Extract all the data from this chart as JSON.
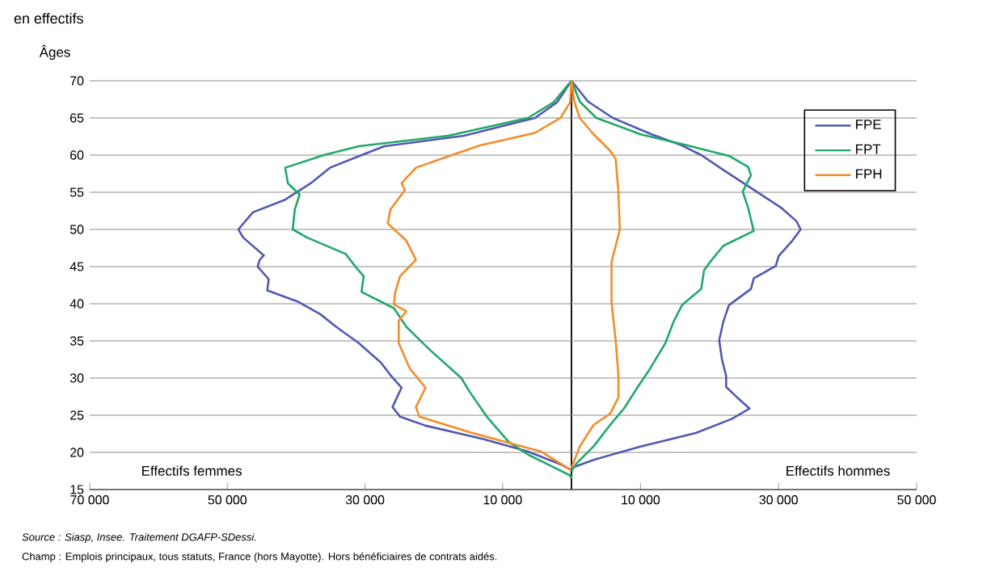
{
  "chart_data": [
    {
      "type": "line",
      "title": "en effectifs",
      "ylabel": "Âges",
      "annotations": [
        "Effectifs femmes",
        "Source : Siasp, Insee. Traitement DGAFP-SDessi.",
        "Champ : Emplois principaux, tous statuts, France (hors Mayotte). Hors bénéficiaires de contrats aidés."
      ],
      "xlim": [
        70000,
        0
      ],
      "xticks": [
        {
          "value": 70000,
          "label": "70 000"
        },
        {
          "value": 50000,
          "label": "50 000"
        },
        {
          "value": 30000,
          "label": "30 000"
        },
        {
          "value": 10000,
          "label": "10 000"
        }
      ],
      "ylim": [
        15,
        70
      ],
      "yticks": [
        15,
        20,
        25,
        30,
        35,
        40,
        45,
        50,
        55,
        60,
        65,
        70
      ],
      "grid": "y",
      "marker": "none",
      "line_style": "solid",
      "ref_lines": [
        {
          "axis": "x",
          "value": 0,
          "color": "#000000"
        }
      ],
      "series": [
        {
          "color": "#5158b0",
          "x": [
            0,
            2100,
            5300,
            15600,
            27200,
            30500,
            35100,
            37900,
            41600,
            46300,
            48400,
            47700,
            44700,
            45300,
            45600,
            44000,
            44200,
            39800,
            36500,
            34200,
            30900,
            27700,
            26300,
            24700,
            26000,
            24900,
            21200,
            12800,
            6300,
            1600,
            0
          ],
          "values": [
            70,
            67.1,
            65,
            62.6,
            61.2,
            60,
            58.3,
            56.2,
            54,
            52.3,
            50,
            48.9,
            46.5,
            45.9,
            45,
            43.3,
            41.8,
            40.3,
            38.6,
            36.9,
            34.7,
            32.1,
            30.4,
            28.7,
            26.1,
            24.8,
            23.6,
            21.8,
            20.1,
            18.4,
            17.6
          ]
        },
        {
          "color": "#1fa86a",
          "x": [
            0,
            2600,
            6300,
            17900,
            30900,
            36000,
            41600,
            41200,
            39500,
            40200,
            40500,
            38400,
            32800,
            31400,
            30200,
            30500,
            25800,
            24000,
            20700,
            16000,
            14900,
            12300,
            9100,
            6300,
            2600,
            200,
            0
          ],
          "values": [
            70,
            67.1,
            65,
            62.6,
            61.2,
            60,
            58.3,
            56.2,
            54.7,
            52.7,
            50,
            48.9,
            46.7,
            45,
            43.7,
            41.6,
            39.4,
            36.9,
            33.9,
            30,
            28.3,
            24.8,
            21.4,
            19.7,
            18,
            16.9,
            16.5
          ]
        },
        {
          "color": "#f28c28",
          "x": [
            0,
            200,
            1600,
            5300,
            13300,
            17400,
            22600,
            24700,
            24200,
            26300,
            26700,
            24000,
            22600,
            24900,
            25600,
            25800,
            24000,
            25100,
            25100,
            23500,
            21200,
            22600,
            22100,
            14700,
            4400,
            2100,
            0
          ],
          "values": [
            70,
            67.1,
            65,
            63,
            61.3,
            60,
            58.3,
            56.2,
            55.3,
            52.7,
            50.8,
            48.5,
            45.9,
            43.7,
            41.6,
            39.9,
            39,
            37.7,
            34.7,
            31.3,
            28.7,
            26.1,
            24.8,
            22.7,
            20.1,
            18.8,
            17.6
          ]
        }
      ]
    },
    {
      "type": "line",
      "annotations": [
        "Effectifs hommes"
      ],
      "xlim": [
        0,
        50000
      ],
      "xticks": [
        {
          "value": 10000,
          "label": "10 000"
        },
        {
          "value": 30000,
          "label": "30 000"
        },
        {
          "value": 50000,
          "label": "50 000"
        }
      ],
      "ylim": [
        15,
        70
      ],
      "tick_labels": "x",
      "grid": "y",
      "legend": "top right",
      "marker": "none",
      "line_style": "solid",
      "series": [
        {
          "name": "FPE",
          "color": "#5158b0",
          "x": [
            0,
            3200,
            10000,
            18000,
            23200,
            25800,
            24000,
            22400,
            22400,
            21800,
            21400,
            22000,
            22800,
            26000,
            26400,
            29600,
            30000,
            32000,
            33200,
            32600,
            30400,
            26800,
            22000,
            18800,
            16000,
            11600,
            6000,
            2400,
            0
          ],
          "values": [
            17.9,
            19,
            20.8,
            22.6,
            24.5,
            25.9,
            27.4,
            28.8,
            30.3,
            32.5,
            35.1,
            37.6,
            39.8,
            42,
            43.4,
            45.1,
            46.4,
            48.5,
            50,
            51.1,
            52.9,
            55.1,
            58,
            60,
            61.3,
            62.8,
            65,
            67.2,
            70
          ]
        },
        {
          "name": "FPT",
          "color": "#1fa86a",
          "x": [
            0,
            800,
            3200,
            5600,
            7600,
            9600,
            11200,
            13600,
            14800,
            16000,
            18800,
            19200,
            20400,
            22000,
            26400,
            25600,
            24800,
            26000,
            25600,
            22800,
            16800,
            10000,
            3600,
            1200,
            0
          ],
          "values": [
            17.5,
            18.6,
            20.8,
            23.7,
            25.9,
            28.8,
            31,
            34.7,
            37.6,
            39.8,
            42,
            44.5,
            46,
            47.8,
            49.8,
            52.9,
            55.1,
            57.3,
            58.4,
            59.9,
            61.3,
            62.8,
            65,
            67.2,
            70
          ]
        },
        {
          "name": "FPH",
          "color": "#f28c28",
          "x": [
            0,
            1200,
            3200,
            5600,
            6800,
            6800,
            6400,
            5800,
            5800,
            7000,
            6800,
            6400,
            5600,
            3200,
            1200,
            400,
            0
          ],
          "values": [
            17.9,
            20.8,
            23.7,
            25.2,
            27.4,
            30.3,
            35.1,
            40.2,
            45.6,
            50,
            55.1,
            59.5,
            60.6,
            62.8,
            65,
            67.2,
            70
          ]
        }
      ]
    }
  ]
}
